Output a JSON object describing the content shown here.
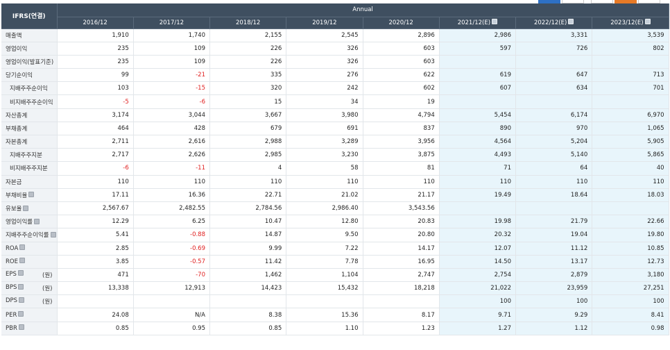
{
  "header": {
    "corner_label": "IFRS(연결)",
    "group_label": "Annual",
    "periods": [
      "2016/12",
      "2017/12",
      "2018/12",
      "2019/12",
      "2020/12",
      "2021/12(E)",
      "2022/12(E)",
      "2023/12(E)"
    ]
  },
  "colors": {
    "header_bg": "#3f4f60",
    "estimate_bg": "#e8f5fb",
    "negative": "#e02020",
    "label_bg": "#f0f3f6"
  },
  "rows": [
    {
      "label": "매출액",
      "unit": "",
      "values": [
        "1,910",
        "1,740",
        "2,155",
        "2,545",
        "2,896",
        "2,986",
        "3,331",
        "3,539"
      ]
    },
    {
      "label": "영업이익",
      "unit": "",
      "values": [
        "235",
        "109",
        "226",
        "326",
        "603",
        "597",
        "726",
        "802"
      ]
    },
    {
      "label": "영업이익(발표기준)",
      "unit": "",
      "values": [
        "235",
        "109",
        "226",
        "326",
        "603",
        "",
        "",
        ""
      ]
    },
    {
      "label": "당기순이익",
      "unit": "",
      "values": [
        "99",
        "-21",
        "335",
        "276",
        "622",
        "619",
        "647",
        "713"
      ]
    },
    {
      "label": "지배주주순이익",
      "unit": "",
      "values": [
        "103",
        "-15",
        "320",
        "242",
        "602",
        "607",
        "634",
        "701"
      ]
    },
    {
      "label": "비지배주주순이익",
      "unit": "",
      "values": [
        "-5",
        "-6",
        "15",
        "34",
        "19",
        "",
        "",
        ""
      ]
    },
    {
      "label": "자산총계",
      "unit": "",
      "values": [
        "3,174",
        "3,044",
        "3,667",
        "3,980",
        "4,794",
        "5,454",
        "6,174",
        "6,970"
      ]
    },
    {
      "label": "부채총계",
      "unit": "",
      "values": [
        "464",
        "428",
        "679",
        "691",
        "837",
        "890",
        "970",
        "1,065"
      ]
    },
    {
      "label": "자본총계",
      "unit": "",
      "values": [
        "2,711",
        "2,616",
        "2,988",
        "3,289",
        "3,956",
        "4,564",
        "5,204",
        "5,905"
      ]
    },
    {
      "label": "지배주주지분",
      "unit": "",
      "values": [
        "2,717",
        "2,626",
        "2,985",
        "3,230",
        "3,875",
        "4,493",
        "5,140",
        "5,865"
      ]
    },
    {
      "label": "비지배주주지분",
      "unit": "",
      "values": [
        "-6",
        "-11",
        "4",
        "58",
        "81",
        "71",
        "64",
        "40"
      ]
    },
    {
      "label": "자본금",
      "unit": "",
      "values": [
        "110",
        "110",
        "110",
        "110",
        "110",
        "110",
        "110",
        "110"
      ]
    },
    {
      "label": "부채비율",
      "unit": "",
      "values": [
        "17.11",
        "16.36",
        "22.71",
        "21.02",
        "21.17",
        "19.49",
        "18.64",
        "18.03"
      ]
    },
    {
      "label": "유보율",
      "unit": "",
      "values": [
        "2,567.67",
        "2,482.55",
        "2,784.56",
        "2,986.40",
        "3,543.56",
        "",
        "",
        ""
      ]
    },
    {
      "label": "영업이익률",
      "unit": "",
      "values": [
        "12.29",
        "6.25",
        "10.47",
        "12.80",
        "20.83",
        "19.98",
        "21.79",
        "22.66"
      ]
    },
    {
      "label": "지배주주순이익률",
      "unit": "",
      "values": [
        "5.41",
        "-0.88",
        "14.87",
        "9.50",
        "20.80",
        "20.32",
        "19.04",
        "19.80"
      ]
    },
    {
      "label": "ROA",
      "unit": "",
      "values": [
        "2.85",
        "-0.69",
        "9.99",
        "7.22",
        "14.17",
        "12.07",
        "11.12",
        "10.85"
      ]
    },
    {
      "label": "ROE",
      "unit": "",
      "values": [
        "3.85",
        "-0.57",
        "11.42",
        "7.78",
        "16.95",
        "14.50",
        "13.17",
        "12.73"
      ]
    },
    {
      "label": "EPS",
      "unit": "(원)",
      "values": [
        "471",
        "-70",
        "1,462",
        "1,104",
        "2,747",
        "2,754",
        "2,879",
        "3,180"
      ]
    },
    {
      "label": "BPS",
      "unit": "(원)",
      "values": [
        "13,338",
        "12,913",
        "14,423",
        "15,432",
        "18,218",
        "21,022",
        "23,959",
        "27,251"
      ]
    },
    {
      "label": "DPS",
      "unit": "(원)",
      "values": [
        "",
        "",
        "",
        "",
        "",
        "100",
        "100",
        "100"
      ]
    },
    {
      "label": "PER",
      "unit": "",
      "values": [
        "24.08",
        "N/A",
        "8.38",
        "15.36",
        "8.17",
        "9.71",
        "9.29",
        "8.41"
      ]
    },
    {
      "label": "PBR",
      "unit": "",
      "values": [
        "0.85",
        "0.95",
        "0.85",
        "1.10",
        "1.23",
        "1.27",
        "1.12",
        "0.98"
      ]
    }
  ]
}
